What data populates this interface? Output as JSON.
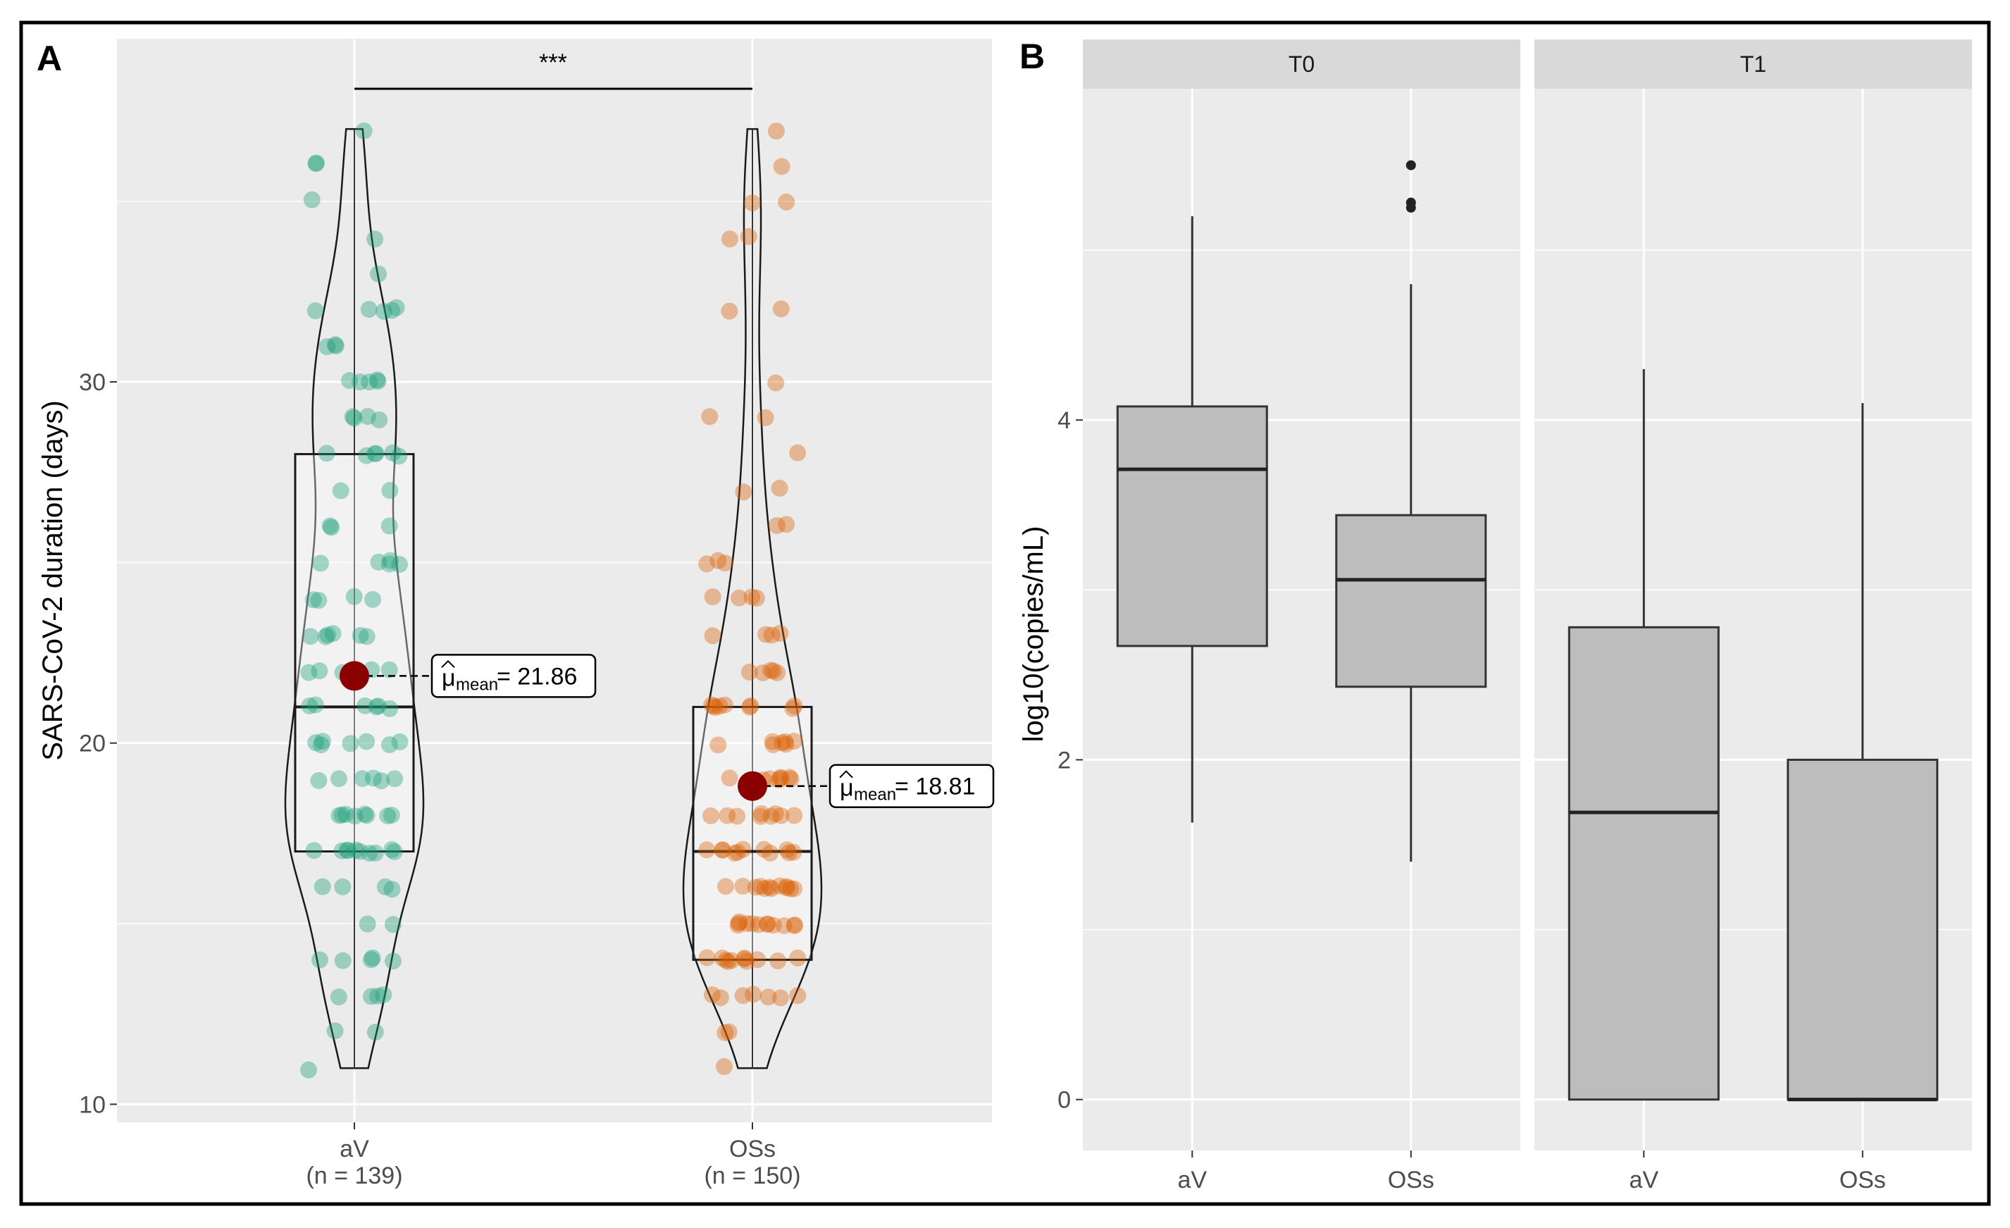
{
  "colors": {
    "panel_bg": "#ebebeb",
    "grid": "#ffffff",
    "strip_bg": "#d9d9d9",
    "av_points": "#1b9e77",
    "oss_points": "#d95f02",
    "mean_point": "#8b0000",
    "box_fill": "#bdbdbd",
    "frame": "#000000"
  },
  "chart_data": [
    {
      "panel": "A",
      "type": "violin-box-scatter",
      "ylabel": "SARS-CoV-2 duration (days)",
      "ylim": [
        9.5,
        39.5
      ],
      "yticks": [
        10,
        20,
        30
      ],
      "significance": "***",
      "groups": [
        {
          "name": "aV",
          "n_label": "(n = 139)",
          "box": {
            "q1": 17,
            "median": 21,
            "q3": 28,
            "min": 11,
            "max": 37
          },
          "mean": 21.86,
          "mean_label": "= 21.86",
          "points": [
            11,
            12,
            12,
            13,
            13,
            13,
            13,
            14,
            14,
            14,
            14,
            14,
            15,
            15,
            16,
            16,
            16,
            16,
            17,
            17,
            17,
            17,
            17,
            17,
            17,
            17,
            17,
            17,
            18,
            18,
            18,
            18,
            18,
            18,
            18,
            18,
            19,
            19,
            19,
            19,
            19,
            19,
            20,
            20,
            20,
            20,
            20,
            20,
            20,
            21,
            21,
            21,
            21,
            21,
            21,
            22,
            22,
            22,
            22,
            22,
            23,
            23,
            23,
            23,
            23,
            23,
            24,
            24,
            24,
            24,
            25,
            25,
            25,
            25,
            25,
            26,
            26,
            26,
            27,
            27,
            28,
            28,
            28,
            28,
            28,
            28,
            29,
            29,
            29,
            29,
            30,
            30,
            30,
            30,
            30,
            31,
            31,
            31,
            32,
            32,
            32,
            32,
            32,
            33,
            34,
            35,
            36,
            36,
            37
          ]
        },
        {
          "name": "OSs",
          "n_label": "(n = 150)",
          "box": {
            "q1": 14,
            "median": 17,
            "q3": 21,
            "min": 11,
            "max": 37
          },
          "mean": 18.81,
          "mean_label": "= 18.81",
          "points": [
            11,
            12,
            12,
            13,
            13,
            13,
            13,
            13,
            13,
            13,
            14,
            14,
            14,
            14,
            14,
            14,
            14,
            14,
            14,
            14,
            14,
            15,
            15,
            15,
            15,
            15,
            15,
            15,
            15,
            15,
            15,
            15,
            15,
            16,
            16,
            16,
            16,
            16,
            16,
            16,
            16,
            16,
            16,
            16,
            16,
            17,
            17,
            17,
            17,
            17,
            17,
            17,
            17,
            17,
            17,
            17,
            18,
            18,
            18,
            18,
            18,
            18,
            18,
            18,
            18,
            19,
            19,
            19,
            19,
            19,
            19,
            19,
            19,
            20,
            20,
            20,
            20,
            20,
            20,
            20,
            21,
            21,
            21,
            21,
            21,
            21,
            21,
            21,
            21,
            22,
            22,
            22,
            22,
            22,
            23,
            23,
            23,
            23,
            24,
            24,
            24,
            24,
            25,
            25,
            25,
            26,
            26,
            27,
            27,
            28,
            29,
            29,
            30,
            32,
            32,
            34,
            34,
            35,
            35,
            36,
            37
          ]
        }
      ]
    },
    {
      "panel": "B",
      "type": "boxplot-faceted",
      "ylabel": "log10(copies/mL)",
      "ylim": [
        -0.3,
        5.95
      ],
      "yticks": [
        0,
        2,
        4
      ],
      "facets": [
        {
          "strip": "T0",
          "groups": [
            {
              "name": "aV",
              "box": {
                "min": 1.63,
                "q1": 2.67,
                "median": 3.71,
                "q3": 4.08,
                "max": 5.2
              },
              "outliers": []
            },
            {
              "name": "OSs",
              "box": {
                "min": 1.4,
                "q1": 2.43,
                "median": 3.06,
                "q3": 3.44,
                "max": 4.8
              },
              "outliers": [
                5.25,
                5.28,
                5.5
              ]
            }
          ]
        },
        {
          "strip": "T1",
          "groups": [
            {
              "name": "aV",
              "box": {
                "min": 0,
                "q1": 0,
                "median": 1.69,
                "q3": 2.78,
                "max": 4.3
              },
              "outliers": []
            },
            {
              "name": "OSs",
              "box": {
                "min": 0,
                "q1": 0,
                "median": 0,
                "q3": 2.0,
                "max": 4.1
              },
              "outliers": []
            }
          ]
        }
      ]
    }
  ]
}
